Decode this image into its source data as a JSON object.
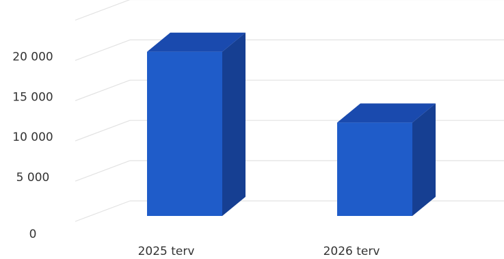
{
  "chart_data": {
    "type": "bar",
    "style": "3d-column",
    "categories": [
      "2025 terv",
      "2026 terv"
    ],
    "values": [
      20400,
      11600
    ],
    "ylim": [
      0,
      25000
    ],
    "yticks": [
      {
        "value": 0,
        "label": "0"
      },
      {
        "value": 5000,
        "label": "5 000"
      },
      {
        "value": 10000,
        "label": "10 000"
      },
      {
        "value": 15000,
        "label": "15 000"
      },
      {
        "value": 20000,
        "label": "20 000"
      }
    ],
    "grid": true,
    "legend": "none",
    "colors": {
      "front": "#1f5cc9",
      "side": "#163f92",
      "top": "#1a4aae",
      "grid": "#e2e2e2",
      "text": "#333333"
    }
  }
}
